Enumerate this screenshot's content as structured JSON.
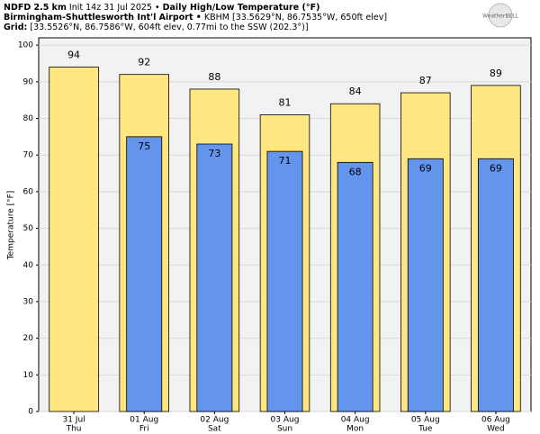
{
  "chart_data": {
    "type": "bar",
    "model": "NDFD 2.5 km",
    "init": "Init 14z 31 Jul 2025 •",
    "title": "Daily High/Low Temperature (°F)",
    "station": "Birmingham-Shuttlesworth Int'l Airport •",
    "station_info": "KBHM [33.5629°N, 86.7535°W, 650ft elev]",
    "grid_label": "Grid:",
    "grid_info": "[33.5526°N, 86.7586°W, 604ft elev, 0.77mi to the SSW (202.3°)]",
    "logo": "WeatherBELL",
    "y_label": "Temperature [°F]",
    "categories": [
      "31 Jul",
      "01 Aug",
      "02 Aug",
      "03 Aug",
      "04 Aug",
      "05 Aug",
      "06 Aug"
    ],
    "weekdays": [
      "Thu",
      "Fri",
      "Sat",
      "Sun",
      "Mon",
      "Tue",
      "Wed"
    ],
    "series": [
      {
        "color": "#ffe680",
        "values": [
          94,
          92,
          88,
          81,
          84,
          87,
          89
        ]
      },
      {
        "color": "#6495ed",
        "values": [
          null,
          75,
          73,
          71,
          68,
          69,
          69
        ]
      }
    ],
    "ylim": [
      0,
      102
    ],
    "yticks": [
      0,
      10,
      20,
      30,
      40,
      50,
      60,
      70,
      80,
      90,
      100
    ],
    "grid": true
  }
}
